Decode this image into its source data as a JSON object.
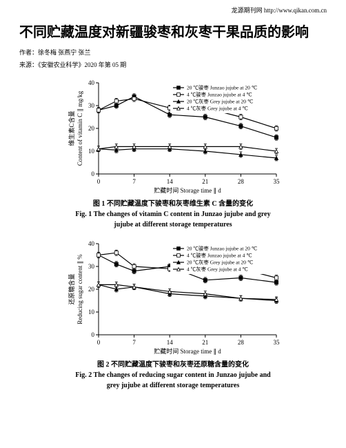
{
  "header": "龙源期刊网 http://www.qikan.com.cn",
  "title": "不同贮藏温度对新疆骏枣和灰枣干果品质的影响",
  "authors_label": "作者：徐冬梅 张燕宁 张兰",
  "source_label": "来源：《安徽农业科学》2020 年第 05 期",
  "fig1": {
    "caption_cn": "图 1  不同贮藏温度下骏枣和灰枣维生素 C 含量的变化",
    "caption_en": "Fig. 1  The changes of vitamin C content in Junzao jujube and grey jujube at different storage temperatures",
    "xlabel": "贮藏时间 Storage time ∥ d",
    "ylabel_cn": "维生素C含量",
    "ylabel_en": "Content of vitamin C ∥ mg/kg",
    "xlim": [
      0,
      35
    ],
    "ylim": [
      0,
      40
    ],
    "xticks": [
      0,
      7,
      14,
      21,
      28,
      35
    ],
    "yticks": [
      0,
      10,
      20,
      30,
      40
    ],
    "legend": [
      "20 ℃骏枣 Junzao jujube at 20 ℃",
      "4 ℃骏枣 Junzao jujube at 4 ℃",
      "20 ℃灰枣 Grey jujube at 20 ℃",
      "4 ℃灰枣 Grey jujube at 4 ℃"
    ],
    "series": [
      {
        "marker": "filled-square",
        "y": [
          28,
          30,
          34,
          26,
          25,
          21,
          16
        ]
      },
      {
        "marker": "open-square",
        "y": [
          28,
          32,
          33,
          29,
          29,
          25,
          20
        ]
      },
      {
        "marker": "filled-triangle",
        "y": [
          11,
          10.5,
          11,
          11,
          10,
          8.5,
          7
        ]
      },
      {
        "marker": "open-triangle",
        "y": [
          11,
          12,
          12,
          12,
          12,
          12,
          10
        ]
      }
    ],
    "x": [
      0,
      3.5,
      7,
      14,
      21,
      28,
      35
    ],
    "err": 1.2,
    "colors": {
      "line": "#000000",
      "bg": "#ffffff"
    }
  },
  "fig2": {
    "caption_cn": "图 2  不同贮藏温度下骏枣和灰枣还原糖含量的变化",
    "caption_en": "Fig. 2  The changes of reducing sugar content in Junzao jujube and grey jujube at different storage temperatures",
    "xlabel": "贮藏时间 Storage time ∥ d",
    "ylabel_cn": "还原糖含量",
    "ylabel_en": "Reducing sugar content ∥ %",
    "xlim": [
      0,
      35
    ],
    "ylim": [
      0,
      40
    ],
    "xticks": [
      0,
      7,
      14,
      21,
      28,
      35
    ],
    "yticks": [
      0,
      10,
      20,
      30,
      40
    ],
    "legend": [
      "20 ℃骏枣 Junzao jujube at 20 ℃",
      "4 ℃骏枣 Junzao jujube at 4 ℃",
      "20 ℃灰枣 Grey jujube at 20 ℃",
      "4 ℃灰枣 Grey jujube at 4 ℃"
    ],
    "series": [
      {
        "marker": "filled-square",
        "y": [
          35,
          31,
          28,
          30,
          24,
          25,
          23
        ]
      },
      {
        "marker": "open-square",
        "y": [
          35,
          36,
          30,
          29,
          28,
          29,
          25
        ]
      },
      {
        "marker": "filled-triangle",
        "y": [
          22,
          20,
          21,
          18,
          17,
          16,
          15
        ]
      },
      {
        "marker": "open-triangle",
        "y": [
          22,
          22,
          21,
          19,
          18,
          16,
          15.5
        ]
      }
    ],
    "x": [
      0,
      3.5,
      7,
      14,
      21,
      28,
      35
    ],
    "err": 1.2,
    "colors": {
      "line": "#000000",
      "bg": "#ffffff"
    }
  }
}
